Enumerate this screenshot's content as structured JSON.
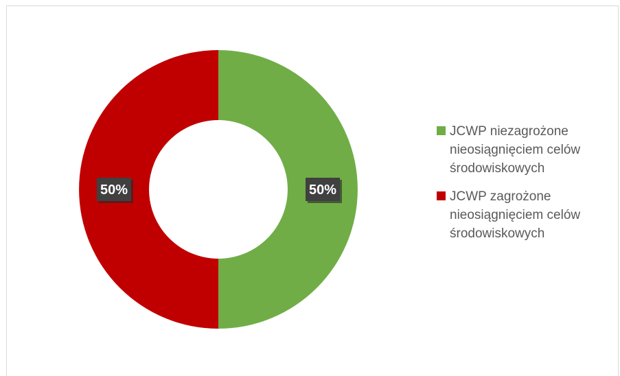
{
  "chart_data": {
    "type": "pie",
    "variant": "donut",
    "title": "",
    "categories": [
      "JCWP niezagrożone nieosiągnięciem celów środowiskowych",
      "JCWP zagrożone nieosiągnięciem celów środowiskowych"
    ],
    "values": [
      50,
      50
    ],
    "data_labels": [
      "50%",
      "50%"
    ],
    "colors": [
      "#70ad47",
      "#c00000"
    ],
    "legend_position": "right"
  }
}
